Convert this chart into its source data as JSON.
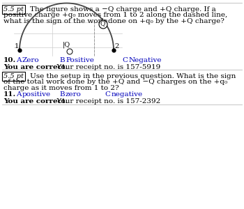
{
  "bg_color": "#ffffff",
  "text_color": "#000000",
  "blue_color": "#0000bb",
  "arc_color": "#444444",
  "fig_width": 3.5,
  "fig_height": 3.0,
  "dpi": 100,
  "box_label": "5.5 pt",
  "q10_line1a": "The figure shows a −Q charge and +Q charge. If a",
  "q10_line2": "positive charge +q₀ moves from 1 to 2 along the dashed line,",
  "q10_line3": "what is the sign of the work done on +q₀ by the +Q charge?",
  "q10_num": "10.",
  "q10_A": "A",
  "q10_Aval": "Zero",
  "q10_B": "B",
  "q10_Bval": "Positive",
  "q10_C": "C",
  "q10_Cval": "Negative",
  "correct10_bold": "You are correct.",
  "correct10_rest": "  Your receipt no. is 157-5919",
  "q11_box_label": "5.5 pt",
  "q11_line1": "Use the setup in the previous question. What is the sign",
  "q11_line2a": "of the total work done by the +Q and −Q charges on the +q₀",
  "q11_line3": "charge as it moves from 1 to 2?",
  "q11_num": "11.",
  "q11_A": "A",
  "q11_Aval": "positive",
  "q11_B": "B",
  "q11_Bval": "zero",
  "q11_C": "C",
  "q11_Cval": "negative",
  "correct11_bold": "You are correct.",
  "correct11_rest": "  Your receipt no. is 157-2392"
}
